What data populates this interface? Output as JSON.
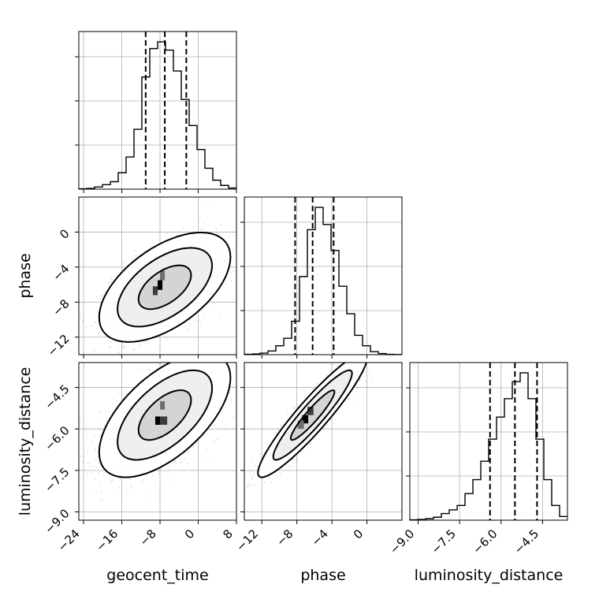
{
  "chart_data": {
    "type": "corner",
    "parameters": [
      "geocent_time",
      "phase",
      "luminosity_distance"
    ],
    "axis_labels": {
      "geocent_time": "geocent_time",
      "phase": "phase",
      "luminosity_distance": "luminosity_distance"
    },
    "ranges": {
      "geocent_time": [
        -25,
        8
      ],
      "phase": [
        -14,
        4
      ],
      "luminosity_distance": [
        -9.3,
        -3.6
      ]
    },
    "ticks": {
      "geocent_time": [
        -24,
        -16,
        -8,
        0,
        8
      ],
      "phase": [
        -12,
        -8,
        -4,
        0
      ],
      "luminosity_distance": [
        -9.0,
        -7.5,
        -6.0,
        -4.5
      ]
    },
    "tick_labels": {
      "geocent_time": [
        "−24",
        "−16",
        "−8",
        "0",
        "8"
      ],
      "phase": [
        "−12",
        "−8",
        "−4",
        "0"
      ],
      "luminosity_distance": [
        "−9.0",
        "−7.5",
        "−6.0",
        "−4.5"
      ]
    },
    "quantiles": {
      "geocent_time": [
        -11.0,
        -7.0,
        -2.5
      ],
      "phase": [
        -8.2,
        -6.2,
        -3.8
      ],
      "luminosity_distance": [
        -6.4,
        -5.5,
        -4.7
      ]
    },
    "histograms": {
      "geocent_time": {
        "bin_edges": [
          -25,
          -23.35,
          -21.7,
          -20.05,
          -18.4,
          -16.75,
          -15.1,
          -13.45,
          -11.8,
          -10.15,
          -8.5,
          -6.85,
          -5.2,
          -3.55,
          -1.9,
          -0.25,
          1.4,
          3.05,
          4.7,
          6.35,
          8
        ],
        "counts": [
          0.5,
          1,
          3,
          6,
          10,
          22,
          43,
          80,
          150,
          188,
          197,
          186,
          158,
          120,
          85,
          53,
          28,
          12,
          5,
          1.5
        ]
      },
      "phase": {
        "bin_edges": [
          -14,
          -13.1,
          -12.2,
          -11.3,
          -10.4,
          -9.5,
          -8.6,
          -7.7,
          -6.8,
          -5.9,
          -5,
          -4.1,
          -3.2,
          -2.3,
          -1.4,
          -0.5,
          0.4,
          1.3,
          2.2,
          3.1,
          4
        ],
        "counts": [
          0.5,
          1,
          2,
          5,
          12,
          22,
          45,
          105,
          168,
          198,
          175,
          140,
          92,
          55,
          26,
          12,
          4,
          1.5,
          0.5,
          0.2
        ]
      },
      "luminosity_distance": {
        "bin_edges": [
          -9.3,
          -9.015,
          -8.73,
          -8.445,
          -8.16,
          -7.875,
          -7.59,
          -7.305,
          -7.02,
          -6.735,
          -6.45,
          -6.165,
          -5.88,
          -5.595,
          -5.31,
          -5.025,
          -4.74,
          -4.455,
          -4.17,
          -3.885,
          -3.6
        ],
        "counts": [
          0.5,
          1,
          2,
          4,
          9,
          14,
          20,
          36,
          55,
          80,
          110,
          140,
          165,
          188,
          200,
          165,
          110,
          55,
          20,
          5
        ]
      }
    },
    "pairs": [
      {
        "x": "geocent_time",
        "y": "phase",
        "mean": [
          -7.0,
          -6.3
        ],
        "sd": [
          5.5,
          2.5
        ],
        "corr": 0.55,
        "dense_bins": [
          [
            -8.5,
            -7.5,
            -6.6,
            -5.5
          ],
          [
            -9.5,
            -8.5,
            -7.2,
            -6.2
          ],
          [
            -8.0,
            -7.0,
            -5.5,
            -4.4
          ]
        ]
      },
      {
        "x": "geocent_time",
        "y": "luminosity_distance",
        "mean": [
          -7.0,
          -5.5
        ],
        "sd": [
          5.5,
          0.9
        ],
        "corr": 0.6,
        "dense_bins": [
          [
            -9.0,
            -8.0,
            -5.85,
            -5.55
          ],
          [
            -8.0,
            -6.5,
            -5.85,
            -5.55
          ],
          [
            -8.0,
            -7.0,
            -5.3,
            -5.0
          ]
        ]
      },
      {
        "x": "phase",
        "y": "luminosity_distance",
        "mean": [
          -6.2,
          -5.5
        ],
        "sd": [
          2.5,
          0.9
        ],
        "corr": 0.93,
        "dense_bins": [
          [
            -7.4,
            -6.7,
            -5.8,
            -5.5
          ],
          [
            -6.8,
            -6.1,
            -5.5,
            -5.2
          ],
          [
            -7.9,
            -7.2,
            -6.0,
            -5.7
          ]
        ]
      }
    ],
    "contour_levels": [
      {
        "level": "inner",
        "mahalanobis": 1.0
      },
      {
        "level": "middle",
        "mahalanobis": 1.8
      },
      {
        "level": "outer",
        "mahalanobis": 2.5
      }
    ],
    "grid": true,
    "colors": {
      "line": "#000000",
      "scatter": "#8c8c8c",
      "grid": "#b0b0b0"
    }
  }
}
